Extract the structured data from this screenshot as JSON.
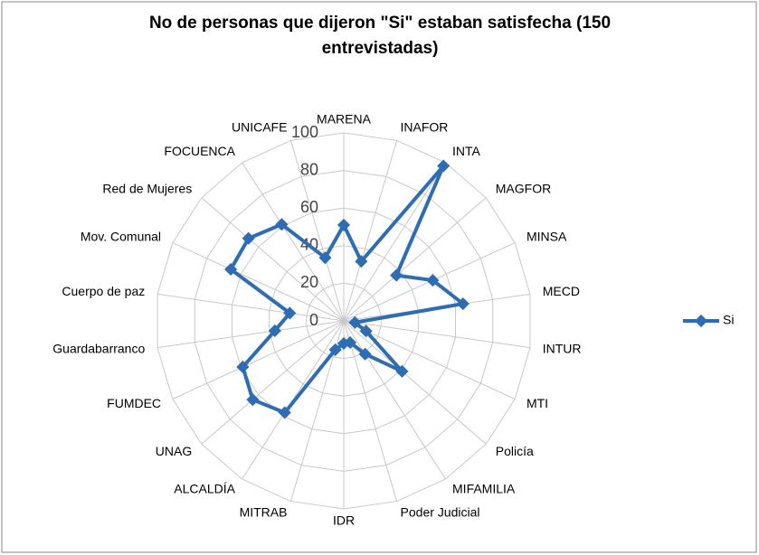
{
  "chart_data": {
    "type": "radar",
    "title": "No de personas  que dijeron \"Si\" estaban satisfecha  (150 entrevistadas)",
    "categories": [
      "MARENA",
      "INAFOR",
      "INTA",
      "MAGFOR",
      "MINSA",
      "MECD",
      "INTUR",
      "MTI",
      "Policía",
      "MIFAMILIA",
      "Poder Judicial",
      "IDR",
      "MITRAB",
      "ALCALDÍA",
      "UNAG",
      "FUMDEC",
      "Guardabarranco",
      "Cuerpo de paz",
      "Mov. Comunal",
      "Red de Mujeres",
      "FOCUENCA",
      "UNICAFE"
    ],
    "series": [
      {
        "name": "Si",
        "color": "#2e6db4",
        "values": [
          51,
          33,
          98,
          37,
          52,
          64,
          6,
          13,
          41,
          21,
          12,
          12,
          16,
          58,
          64,
          59,
          37,
          29,
          66,
          67,
          61,
          35
        ]
      }
    ],
    "ylim": [
      0,
      100
    ],
    "yticks": [
      0,
      20,
      40,
      60,
      80,
      100
    ],
    "grid": true,
    "legend": "right"
  }
}
